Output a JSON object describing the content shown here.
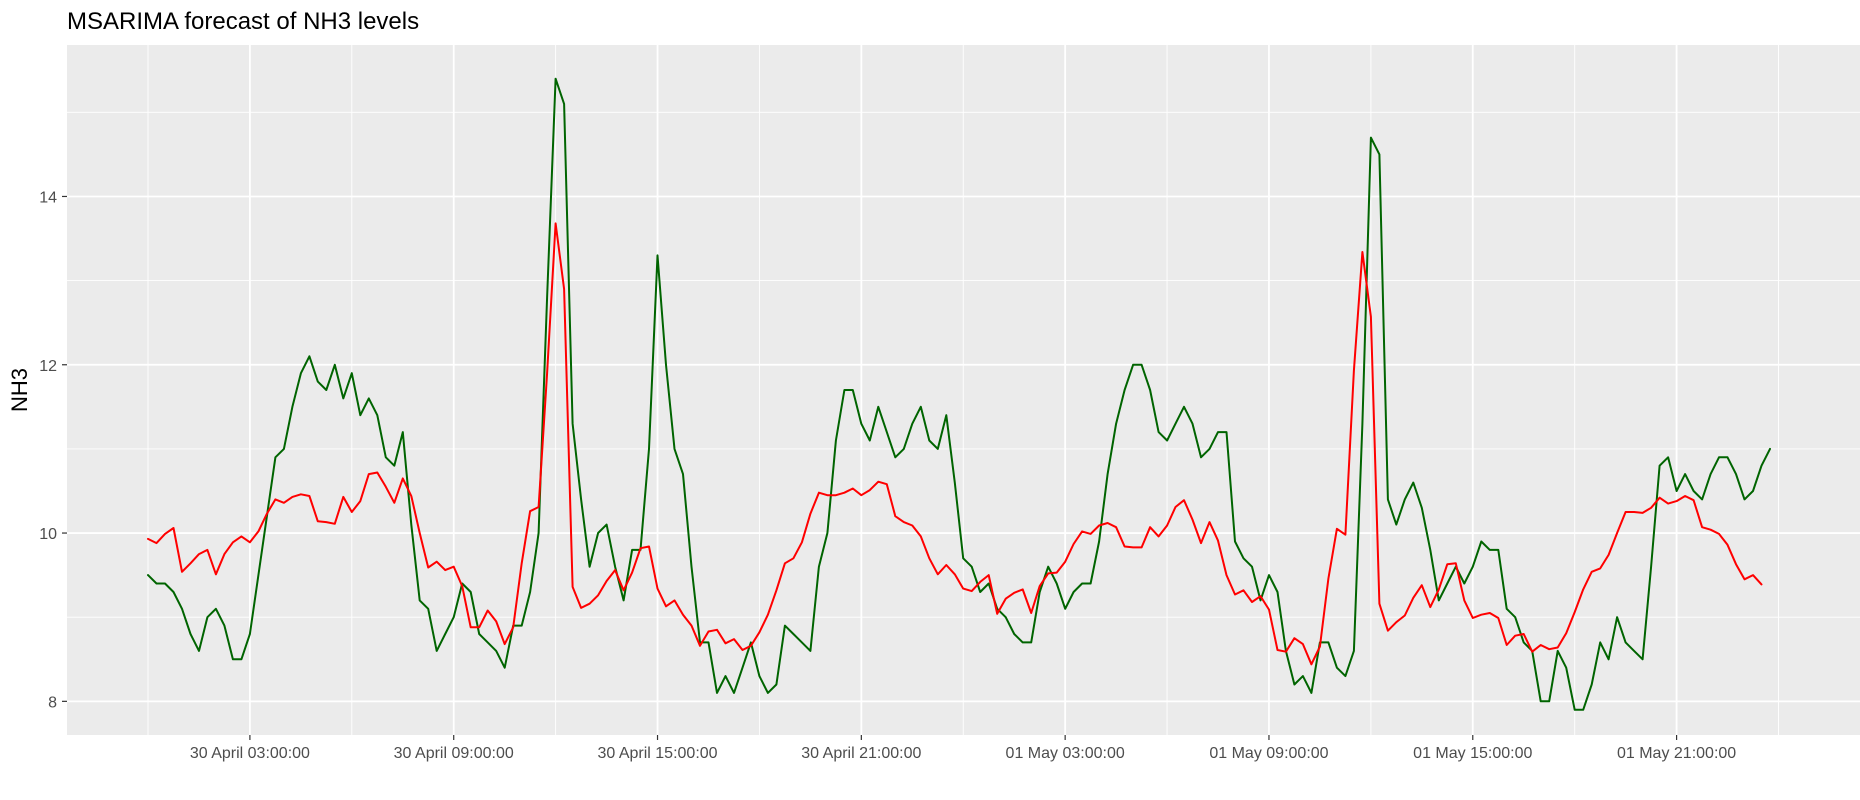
{
  "chart_data": {
    "type": "line",
    "title": "MSARIMA forecast of NH3 levels",
    "xlabel": "",
    "ylabel": "NH3",
    "x_start": "2023-04-30 00:00:00",
    "x_step_minutes": 15,
    "x_tick_labels": [
      {
        "x": "2023-04-30 03:00:00",
        "label": "30 April 03:00:00"
      },
      {
        "x": "2023-04-30 09:00:00",
        "label": "30 April 09:00:00"
      },
      {
        "x": "2023-04-30 15:00:00",
        "label": "30 April 15:00:00"
      },
      {
        "x": "2023-04-30 21:00:00",
        "label": "30 April 21:00:00"
      },
      {
        "x": "2023-05-01 03:00:00",
        "label": "01 May 03:00:00"
      },
      {
        "x": "2023-05-01 09:00:00",
        "label": "01 May 09:00:00"
      },
      {
        "x": "2023-05-01 15:00:00",
        "label": "01 May 15:00:00"
      },
      {
        "x": "2023-05-01 21:00:00",
        "label": "01 May 21:00:00"
      }
    ],
    "y_ticks": [
      8,
      10,
      12,
      14
    ],
    "ylim": [
      7.6,
      15.8
    ],
    "grid": true,
    "series": [
      {
        "color": "#006400",
        "values": [
          9.5,
          9.4,
          9.4,
          9.3,
          9.1,
          8.8,
          8.6,
          9.0,
          9.1,
          8.9,
          8.5,
          8.5,
          8.8,
          9.5,
          10.2,
          10.9,
          11.0,
          11.5,
          11.9,
          12.1,
          11.8,
          11.7,
          12.0,
          11.6,
          11.9,
          11.4,
          11.6,
          11.4,
          10.9,
          10.8,
          11.2,
          10.1,
          9.2,
          9.1,
          8.6,
          8.8,
          9.0,
          9.4,
          9.3,
          8.8,
          8.7,
          8.6,
          8.4,
          8.9,
          8.9,
          9.3,
          10.0,
          12.8,
          15.4,
          15.1,
          11.3,
          10.4,
          9.6,
          10.0,
          10.1,
          9.6,
          9.2,
          9.8,
          9.8,
          11.0,
          13.3,
          12.0,
          11.0,
          10.7,
          9.6,
          8.7,
          8.7,
          8.1,
          8.3,
          8.1,
          8.4,
          8.7,
          8.3,
          8.1,
          8.2,
          8.9,
          8.8,
          8.7,
          8.6,
          9.6,
          10.0,
          11.1,
          11.7,
          11.7,
          11.3,
          11.1,
          11.5,
          11.2,
          10.9,
          11.0,
          11.3,
          11.5,
          11.1,
          11.0,
          11.4,
          10.6,
          9.7,
          9.6,
          9.3,
          9.4,
          9.1,
          9.0,
          8.8,
          8.7,
          8.7,
          9.3,
          9.6,
          9.4,
          9.1,
          9.3,
          9.4,
          9.4,
          9.9,
          10.7,
          11.3,
          11.7,
          12.0,
          12.0,
          11.7,
          11.2,
          11.1,
          11.3,
          11.5,
          11.3,
          10.9,
          11.0,
          11.2,
          11.2,
          9.9,
          9.7,
          9.6,
          9.2,
          9.5,
          9.3,
          8.6,
          8.2,
          8.3,
          8.1,
          8.7,
          8.7,
          8.4,
          8.3,
          8.6,
          11.3,
          14.7,
          14.5,
          10.4,
          10.1,
          10.4,
          10.6,
          10.3,
          9.8,
          9.2,
          9.4,
          9.6,
          9.4,
          9.6,
          9.9,
          9.8,
          9.8,
          9.1,
          9.0,
          8.7,
          8.6,
          8.0,
          8.0,
          8.6,
          8.4,
          7.9,
          7.9,
          8.2,
          8.7,
          8.5,
          9.0,
          8.7,
          8.6,
          8.5,
          9.6,
          10.8,
          10.9,
          10.5,
          10.7,
          10.5,
          10.4,
          10.7,
          10.9,
          10.9,
          10.7,
          10.4,
          10.5,
          10.8,
          11.0
        ]
      },
      {
        "color": "#ff0000",
        "values": [
          9.93,
          9.88,
          9.99,
          10.06,
          9.54,
          9.64,
          9.75,
          9.8,
          9.51,
          9.75,
          9.89,
          9.96,
          9.89,
          10.02,
          10.23,
          10.4,
          10.36,
          10.43,
          10.46,
          10.44,
          10.14,
          10.13,
          10.11,
          10.43,
          10.25,
          10.38,
          10.7,
          10.72,
          10.55,
          10.36,
          10.65,
          10.44,
          10.0,
          9.59,
          9.66,
          9.56,
          9.6,
          9.37,
          8.88,
          8.88,
          9.08,
          8.95,
          8.68,
          8.88,
          9.64,
          10.26,
          10.31,
          11.9,
          13.68,
          12.9,
          9.36,
          9.11,
          9.16,
          9.26,
          9.43,
          9.56,
          9.32,
          9.53,
          9.82,
          9.84,
          9.34,
          9.13,
          9.2,
          9.03,
          8.9,
          8.66,
          8.83,
          8.85,
          8.69,
          8.74,
          8.61,
          8.66,
          8.82,
          9.03,
          9.32,
          9.64,
          9.7,
          9.89,
          10.23,
          10.48,
          10.45,
          10.45,
          10.48,
          10.53,
          10.45,
          10.51,
          10.61,
          10.58,
          10.2,
          10.13,
          10.09,
          9.96,
          9.7,
          9.51,
          9.62,
          9.51,
          9.34,
          9.31,
          9.42,
          9.5,
          9.04,
          9.22,
          9.29,
          9.33,
          9.05,
          9.37,
          9.52,
          9.53,
          9.66,
          9.87,
          10.02,
          9.99,
          10.09,
          10.12,
          10.07,
          9.84,
          9.83,
          9.83,
          10.07,
          9.96,
          10.09,
          10.31,
          10.39,
          10.16,
          9.88,
          10.13,
          9.91,
          9.5,
          9.27,
          9.32,
          9.18,
          9.25,
          9.09,
          8.61,
          8.59,
          8.75,
          8.68,
          8.44,
          8.65,
          9.46,
          10.05,
          9.98,
          11.93,
          13.34,
          12.57,
          9.16,
          8.84,
          8.94,
          9.02,
          9.23,
          9.38,
          9.12,
          9.33,
          9.63,
          9.64,
          9.2,
          8.99,
          9.03,
          9.05,
          8.99,
          8.67,
          8.78,
          8.8,
          8.59,
          8.67,
          8.62,
          8.64,
          8.81,
          9.06,
          9.33,
          9.54,
          9.58,
          9.74,
          10.0,
          10.25,
          10.25,
          10.24,
          10.3,
          10.42,
          10.35,
          10.38,
          10.44,
          10.39,
          10.07,
          10.04,
          9.99,
          9.86,
          9.63,
          9.45,
          9.5,
          9.39
        ]
      }
    ]
  }
}
